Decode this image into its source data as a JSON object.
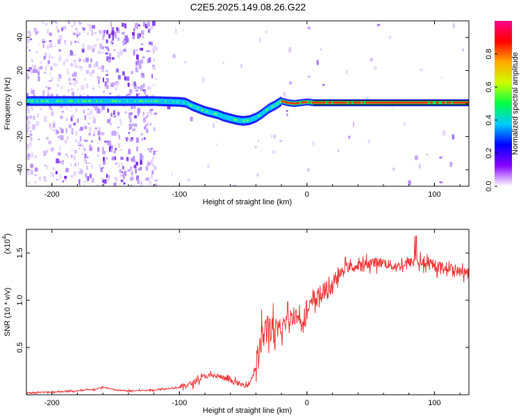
{
  "title": "C2E5.2025.149.08.26.G22",
  "chart_data": [
    {
      "type": "heatmap",
      "xlabel": "Height of straight line (km)",
      "ylabel": "Frequency (Hz)",
      "xlim": [
        -220,
        127
      ],
      "ylim": [
        -50,
        50
      ],
      "x_ticks": [
        -200,
        -100,
        0,
        100
      ],
      "y_ticks": [
        -40,
        -20,
        0,
        20,
        40
      ],
      "grid": false,
      "ridge": {
        "x": [
          -220,
          -120,
          -100,
          -95,
          -90,
          -85,
          -80,
          -75,
          -70,
          -65,
          -60,
          -55,
          -50,
          -45,
          -40,
          -35,
          -30,
          -25,
          -20,
          -15,
          -10,
          -5,
          0,
          5,
          10,
          20,
          50,
          127
        ],
        "freq": [
          1.5,
          1.5,
          1.0,
          0.5,
          -1.5,
          -3.0,
          -4.5,
          -5.5,
          -6.5,
          -8.0,
          -9.0,
          -10.0,
          -10.5,
          -10.0,
          -8.5,
          -6.0,
          -3.0,
          -1.0,
          1.5,
          0.5,
          0.0,
          0.5,
          1.0,
          0.5,
          0.5,
          0.5,
          0.5,
          0.5
        ]
      },
      "colorbar": {
        "label": "Normalized spectral amplitude",
        "range": [
          0,
          1
        ],
        "ticks": [
          0.0,
          0.2,
          0.4,
          0.6,
          0.8
        ],
        "tick_labels": [
          "0.0",
          "0.2",
          "0.4",
          "0.6",
          "0.8"
        ],
        "colors": [
          "#ffffff",
          "#8800ff",
          "#0000ff",
          "#00ccff",
          "#00ff44",
          "#ccff00",
          "#ffaa00",
          "#ff0000",
          "#ff0088"
        ]
      }
    },
    {
      "type": "line",
      "xlabel": "Height of straight line (km)",
      "ylabel": "SNR (10 * v/v)",
      "multiplier_label": "(x10",
      "multiplier_exp": "4",
      "multiplier_close": ")",
      "xlim": [
        -220,
        127
      ],
      "ylim": [
        0,
        1.75
      ],
      "x_ticks": [
        -200,
        -100,
        0,
        100
      ],
      "y_ticks": [
        0.5,
        1.0,
        1.5
      ],
      "y_tick_labels": [
        "0.5",
        "1.0",
        "1.5"
      ],
      "line_color": "#ee3333",
      "series": [
        {
          "x": [
            -220,
            -200,
            -180,
            -165,
            -160,
            -150,
            -140,
            -120,
            -100,
            -90,
            -80,
            -70,
            -60,
            -50,
            -45,
            -40,
            -35,
            -30,
            -25,
            -20,
            -15,
            -10,
            -5,
            0,
            5,
            10,
            15,
            20,
            25,
            30,
            40,
            50,
            60,
            70,
            80,
            90,
            100,
            110,
            120,
            127
          ],
          "y": [
            0.02,
            0.03,
            0.04,
            0.06,
            0.08,
            0.05,
            0.04,
            0.05,
            0.08,
            0.12,
            0.2,
            0.2,
            0.15,
            0.1,
            0.12,
            0.3,
            0.6,
            0.75,
            0.6,
            0.7,
            0.8,
            0.85,
            0.8,
            0.85,
            1.0,
            1.05,
            1.1,
            1.15,
            1.25,
            1.35,
            1.35,
            1.4,
            1.4,
            1.35,
            1.4,
            1.4,
            1.35,
            1.35,
            1.3,
            1.3
          ]
        }
      ]
    }
  ]
}
